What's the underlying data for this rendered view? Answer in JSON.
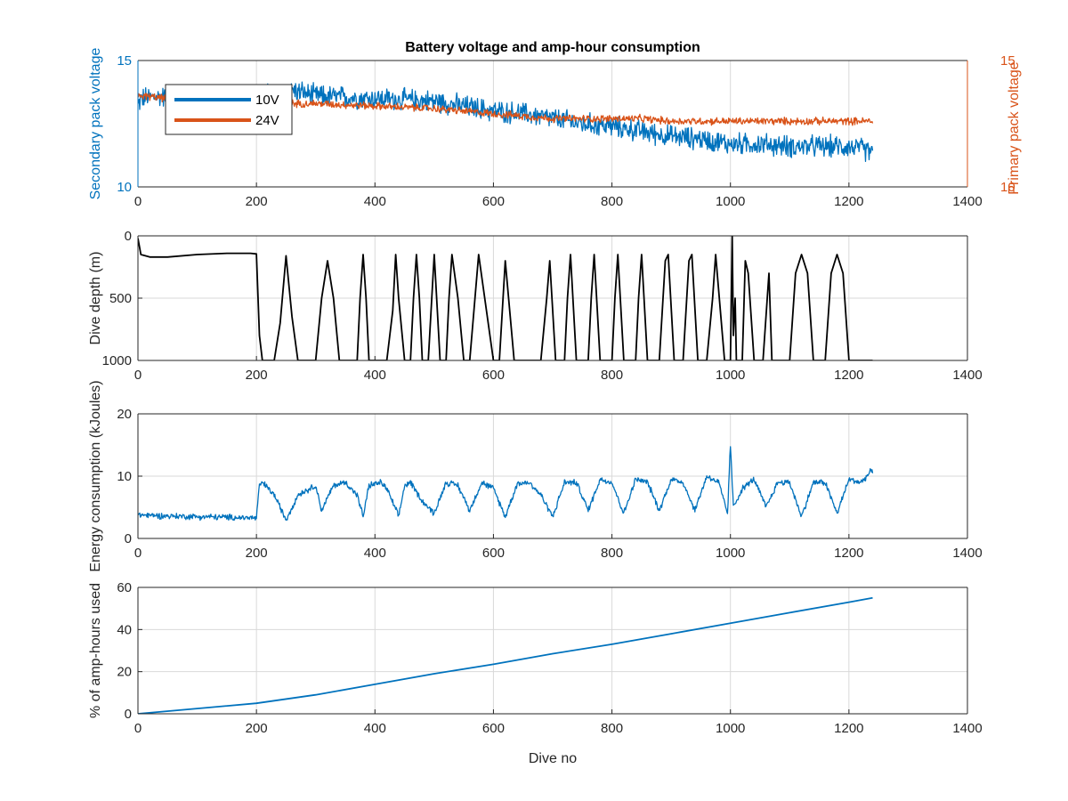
{
  "figure": {
    "title": "Battery voltage and amp-hour consumption",
    "legend": {
      "placement": "top-left",
      "entries": [
        "10V",
        "24V"
      ]
    },
    "colors": {
      "blue": "#0072BD",
      "orange": "#D95319",
      "black": "#000000",
      "grid": "#d9d9d9"
    }
  },
  "chart_data": [
    {
      "type": "line",
      "title": "Battery voltage and amp-hour consumption",
      "xlabel": "",
      "ylabel": "Secondary pack voltage",
      "ylabel_right": "Primary pack voltage",
      "xlim": [
        0,
        1400
      ],
      "ylim": [
        10,
        15
      ],
      "ylim_right": [
        10,
        15
      ],
      "xticks": [
        "0",
        "200",
        "400",
        "600",
        "800",
        "1000",
        "1200",
        "1400"
      ],
      "yticks": [
        "10",
        "15"
      ],
      "yticks_right": [
        "10",
        "15"
      ],
      "grid": true,
      "legend": "top-left",
      "series": [
        {
          "name": "10V",
          "color": "#0072BD",
          "axis": "left",
          "noise": 0.35,
          "x": [
            0,
            5,
            50,
            100,
            150,
            200,
            240,
            250,
            300,
            400,
            500,
            550,
            600,
            650,
            700,
            750,
            800,
            850,
            900,
            950,
            1000,
            1050,
            1100,
            1150,
            1200,
            1240
          ],
          "y": [
            13.2,
            13.5,
            13.6,
            13.6,
            13.6,
            13.6,
            13.7,
            13.9,
            13.6,
            13.5,
            13.4,
            13.2,
            13.0,
            12.9,
            12.7,
            12.5,
            12.4,
            12.2,
            12.0,
            11.9,
            11.7,
            11.7,
            11.6,
            11.6,
            11.6,
            11.4
          ]
        },
        {
          "name": "24V",
          "color": "#D95319",
          "axis": "right",
          "noise": 0.12,
          "x": [
            0,
            5,
            50,
            100,
            150,
            200,
            250,
            300,
            400,
            500,
            550,
            600,
            650,
            700,
            750,
            800,
            850,
            900,
            950,
            1000,
            1050,
            1100,
            1150,
            1200,
            1240
          ],
          "y": [
            13.6,
            13.6,
            13.5,
            13.5,
            13.4,
            13.4,
            13.3,
            13.3,
            13.2,
            13.1,
            13.0,
            12.9,
            12.8,
            12.7,
            12.7,
            12.7,
            12.7,
            12.6,
            12.6,
            12.6,
            12.6,
            12.6,
            12.6,
            12.6,
            12.6
          ]
        }
      ]
    },
    {
      "type": "line",
      "xlabel": "",
      "ylabel": "Dive depth (m)",
      "xlim": [
        0,
        1400
      ],
      "ylim": [
        0,
        1000
      ],
      "reversed_y": true,
      "xticks": [
        "0",
        "200",
        "400",
        "600",
        "800",
        "1000",
        "1200",
        "1400"
      ],
      "yticks": [
        "0",
        "500",
        "1000"
      ],
      "grid": true,
      "series": [
        {
          "color": "#000000",
          "x": [
            0,
            5,
            20,
            50,
            100,
            150,
            190,
            200,
            205,
            210,
            230,
            240,
            250,
            260,
            270,
            300,
            310,
            320,
            330,
            340,
            370,
            375,
            380,
            385,
            390,
            420,
            430,
            435,
            440,
            450,
            460,
            465,
            470,
            475,
            480,
            490,
            500,
            510,
            520,
            525,
            530,
            540,
            550,
            560,
            575,
            600,
            610,
            620,
            635,
            680,
            690,
            695,
            705,
            720,
            725,
            730,
            740,
            760,
            765,
            770,
            780,
            800,
            805,
            810,
            820,
            840,
            845,
            850,
            860,
            880,
            890,
            895,
            905,
            920,
            930,
            935,
            945,
            960,
            970,
            975,
            990,
            1000,
            1003,
            1005,
            1008,
            1010,
            1020,
            1025,
            1030,
            1040,
            1055,
            1065,
            1070,
            1080,
            1100,
            1110,
            1120,
            1130,
            1140,
            1160,
            1170,
            1180,
            1190,
            1200,
            1210,
            1240
          ],
          "y": [
            20,
            150,
            170,
            170,
            150,
            140,
            140,
            145,
            800,
            1000,
            1000,
            700,
            160,
            650,
            1000,
            1000,
            500,
            200,
            500,
            1000,
            1000,
            500,
            150,
            500,
            1000,
            1000,
            600,
            150,
            500,
            1000,
            1000,
            500,
            150,
            500,
            1000,
            1000,
            150,
            1000,
            1000,
            500,
            150,
            500,
            1000,
            1000,
            150,
            1000,
            1000,
            200,
            1000,
            1000,
            500,
            200,
            1000,
            1000,
            500,
            150,
            1000,
            1000,
            500,
            150,
            1000,
            1000,
            500,
            150,
            1000,
            1000,
            500,
            150,
            1000,
            1000,
            200,
            150,
            1000,
            1000,
            200,
            150,
            1000,
            1000,
            500,
            150,
            1000,
            1000,
            0,
            800,
            500,
            1000,
            1000,
            200,
            300,
            1000,
            1000,
            300,
            1000,
            1000,
            1000,
            300,
            150,
            300,
            1000,
            1000,
            300,
            150,
            300,
            1000,
            1000,
            1000
          ]
        }
      ]
    },
    {
      "type": "line",
      "xlabel": "",
      "ylabel": "Energy consumption (kJoules)",
      "xlim": [
        0,
        1400
      ],
      "ylim": [
        0,
        20
      ],
      "xticks": [
        "0",
        "200",
        "400",
        "600",
        "800",
        "1000",
        "1200",
        "1400"
      ],
      "yticks": [
        "0",
        "10",
        "20"
      ],
      "grid": true,
      "series": [
        {
          "color": "#0072BD",
          "noise": 0.4,
          "x": [
            0,
            50,
            100,
            150,
            200,
            205,
            210,
            230,
            250,
            270,
            290,
            300,
            310,
            330,
            350,
            370,
            380,
            390,
            410,
            420,
            440,
            450,
            460,
            480,
            500,
            520,
            540,
            560,
            580,
            600,
            620,
            640,
            660,
            680,
            700,
            720,
            740,
            760,
            780,
            800,
            820,
            840,
            860,
            880,
            900,
            920,
            940,
            960,
            980,
            995,
            1000,
            1005,
            1020,
            1040,
            1060,
            1080,
            1100,
            1120,
            1140,
            1160,
            1180,
            1200,
            1220,
            1240
          ],
          "y": [
            3.8,
            3.6,
            3.5,
            3.4,
            3.3,
            8.5,
            9,
            7,
            3,
            7,
            8,
            8.5,
            4.5,
            8.5,
            9,
            7,
            3.5,
            8.5,
            9,
            8,
            3.5,
            8.5,
            9,
            6,
            4,
            9,
            8.5,
            4.5,
            9,
            8,
            3.5,
            8.8,
            9,
            7,
            3.5,
            9,
            9,
            4.5,
            9.5,
            9,
            4,
            9.5,
            9,
            4.5,
            9.5,
            9,
            4.5,
            10,
            9,
            4,
            15,
            5,
            8,
            9.5,
            5,
            9,
            9,
            3.5,
            9,
            9,
            4,
            9.5,
            9,
            11
          ]
        }
      ]
    },
    {
      "type": "line",
      "xlabel": "Dive no",
      "ylabel": "% of amp-hours used",
      "xlim": [
        0,
        1400
      ],
      "ylim": [
        0,
        60
      ],
      "xticks": [
        "0",
        "200",
        "400",
        "600",
        "800",
        "1000",
        "1200",
        "1400"
      ],
      "yticks": [
        "0",
        "20",
        "40",
        "60"
      ],
      "grid": true,
      "series": [
        {
          "color": "#0072BD",
          "x": [
            0,
            100,
            200,
            300,
            400,
            500,
            600,
            700,
            800,
            900,
            1000,
            1100,
            1200,
            1240
          ],
          "y": [
            0,
            2.5,
            5,
            9,
            14,
            19,
            23.5,
            28.5,
            33,
            38,
            43,
            48,
            53,
            55
          ]
        }
      ]
    }
  ]
}
